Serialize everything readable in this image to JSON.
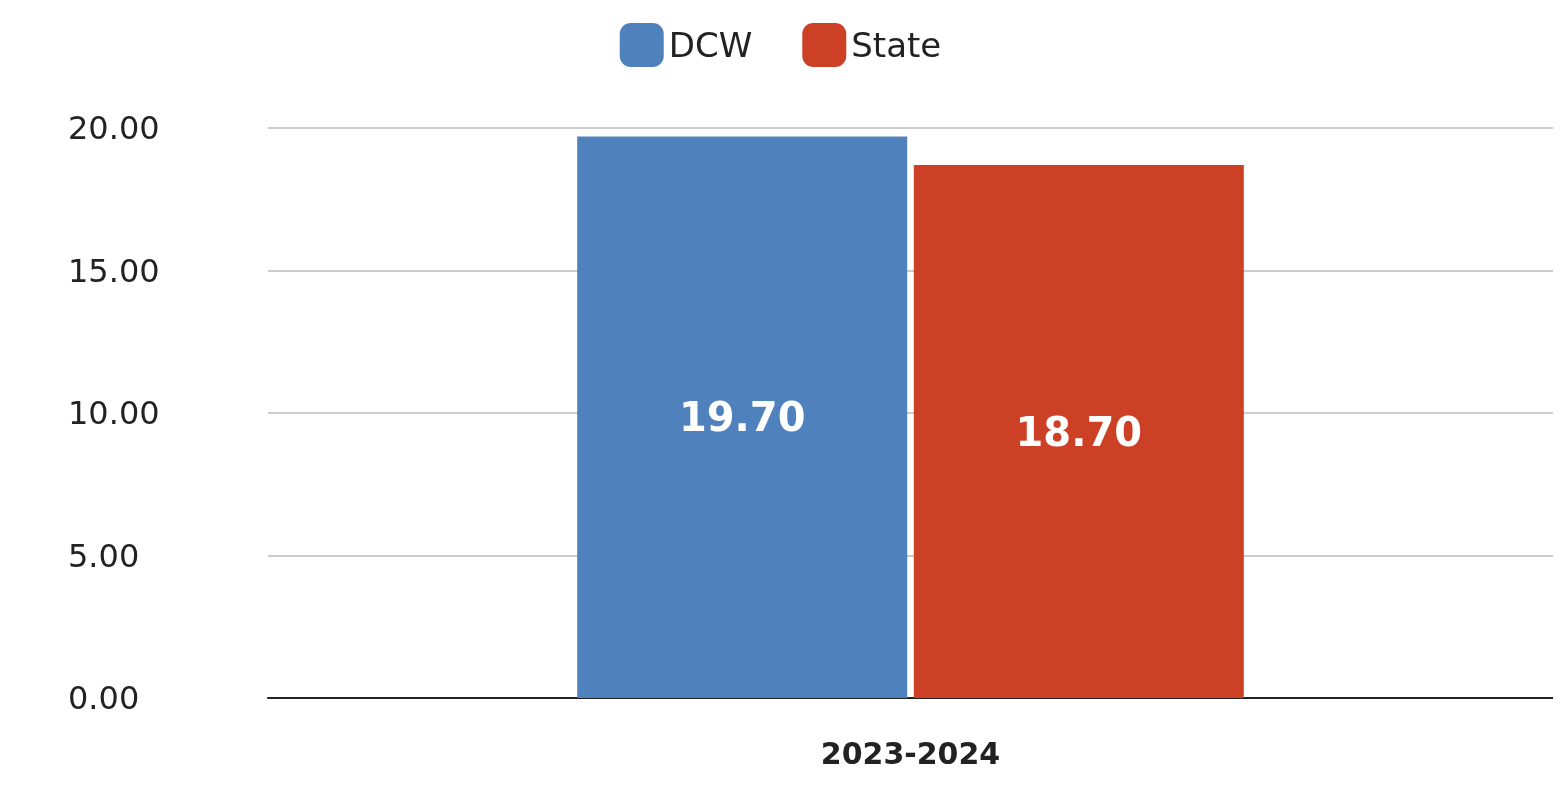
{
  "chart_data": {
    "type": "bar",
    "categories": [
      "2023-2024"
    ],
    "series": [
      {
        "name": "DCW",
        "color": "#4f81bd",
        "values": [
          19.7
        ],
        "value_labels": [
          "19.70"
        ]
      },
      {
        "name": "State",
        "color": "#cc4125",
        "values": [
          18.7
        ],
        "value_labels": [
          "18.70"
        ]
      }
    ],
    "ylim": [
      0,
      20
    ],
    "yticks": [
      {
        "value": 0,
        "label": "0.00"
      },
      {
        "value": 5,
        "label": "5.00"
      },
      {
        "value": 10,
        "label": "10.00"
      },
      {
        "value": 15,
        "label": "15.00"
      },
      {
        "value": 20,
        "label": "20.00"
      }
    ],
    "grid": "y",
    "legend": "top"
  }
}
